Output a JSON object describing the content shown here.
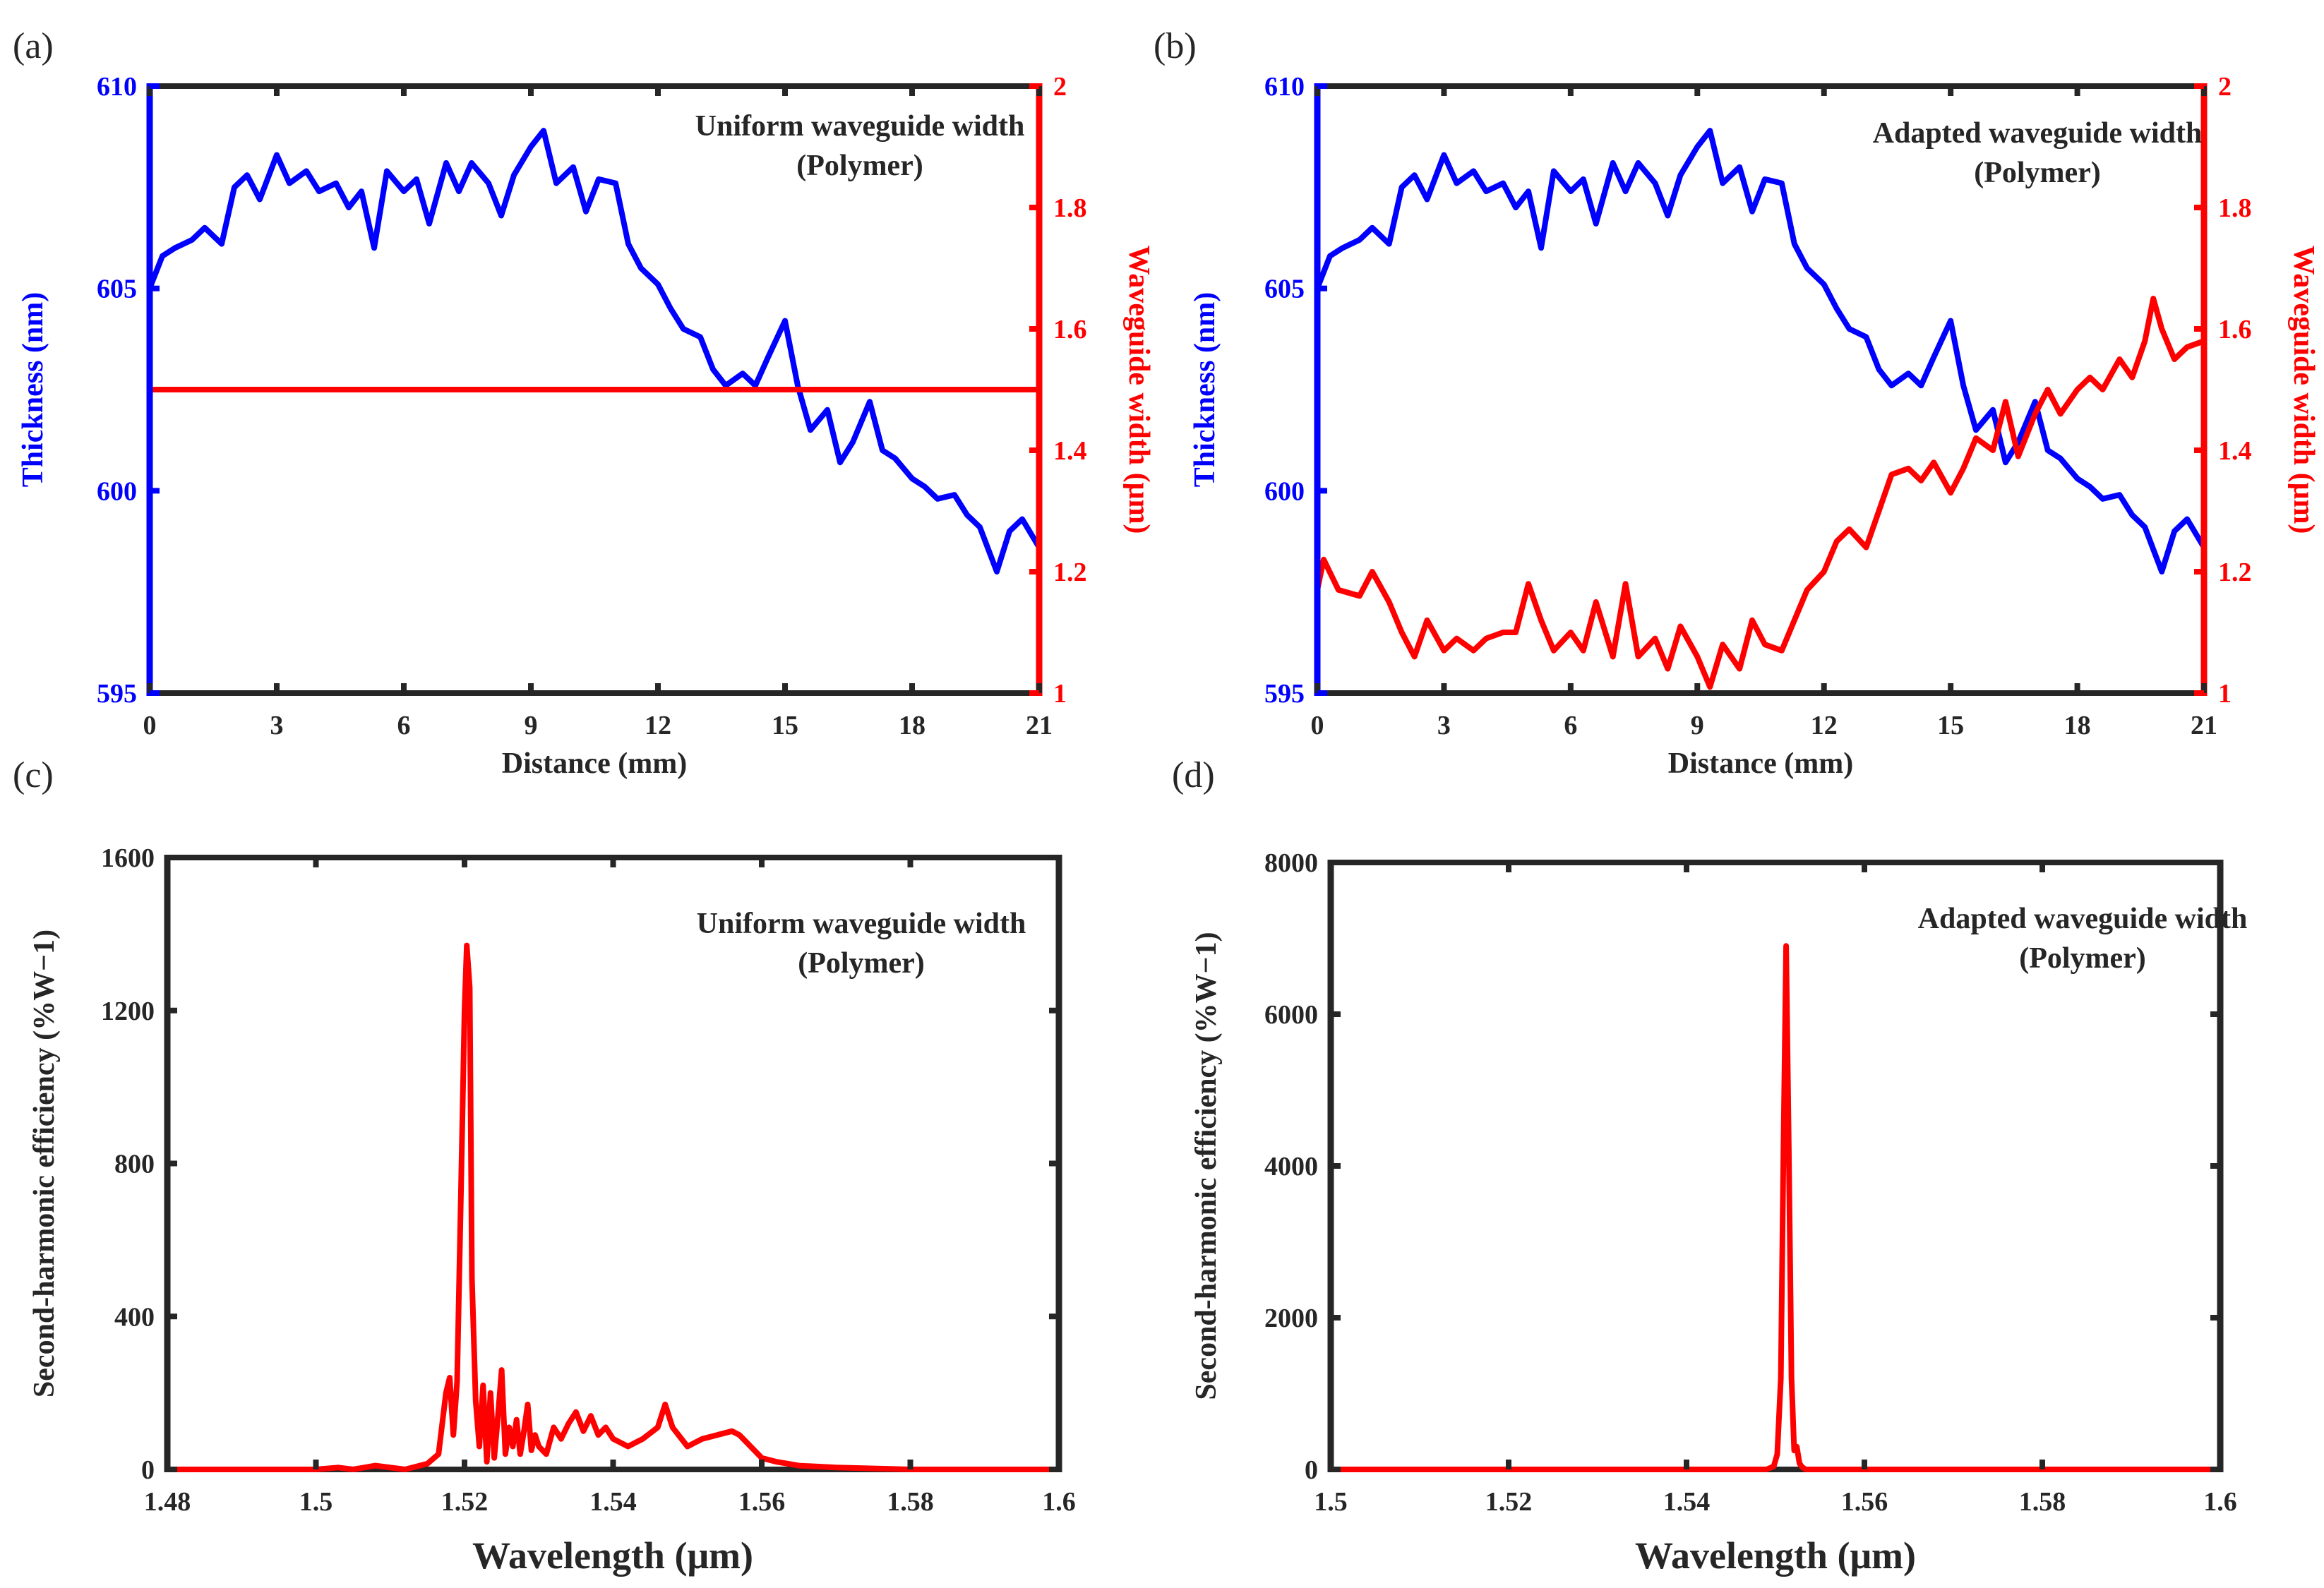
{
  "colors": {
    "blue": "#0000ff",
    "red": "#ff0000",
    "frame": "#262626",
    "text": "#262626"
  },
  "chart_data": [
    {
      "id": "a",
      "panel_label": "(a)",
      "type": "line",
      "annotation": [
        "Uniform waveguide width",
        "(Polymer)"
      ],
      "xlabel": "Distance (mm)",
      "xlim": [
        0,
        21
      ],
      "xticks": [
        0,
        3,
        6,
        9,
        12,
        15,
        18,
        21
      ],
      "xtick_labels": [
        "0",
        "3",
        "6",
        "9",
        "12",
        "15",
        "18",
        "21"
      ],
      "ylabel": "Thickness (nm)",
      "ylim": [
        595,
        610
      ],
      "yticks": [
        595,
        600,
        605,
        610
      ],
      "ytick_labels": [
        "595",
        "600",
        "605",
        "610"
      ],
      "y2label": "Waveguide width (μm)",
      "y2lim": [
        1,
        2
      ],
      "y2ticks": [
        1,
        1.2,
        1.4,
        1.6,
        1.8,
        2
      ],
      "y2tick_labels": [
        "1",
        "1.2",
        "1.4",
        "1.6",
        "1.8",
        "2"
      ],
      "series": [
        {
          "name": "Thickness",
          "axis": "left",
          "color": "#0000ff",
          "x": [
            0,
            0.3,
            0.6,
            1,
            1.3,
            1.7,
            2,
            2.3,
            2.6,
            3,
            3.3,
            3.7,
            4,
            4.4,
            4.7,
            5,
            5.3,
            5.6,
            6,
            6.3,
            6.6,
            7,
            7.3,
            7.6,
            8,
            8.3,
            8.6,
            9,
            9.3,
            9.6,
            10,
            10.3,
            10.6,
            11,
            11.3,
            11.6,
            12,
            12.3,
            12.6,
            13,
            13.3,
            13.6,
            14,
            14.3,
            14.6,
            15,
            15.3,
            15.6,
            16,
            16.3,
            16.6,
            17,
            17.3,
            17.6,
            18,
            18.3,
            18.6,
            19,
            19.3,
            19.6,
            20,
            20.3,
            20.6,
            21
          ],
          "values": [
            605,
            605.8,
            606,
            606.2,
            606.5,
            606.1,
            607.5,
            607.8,
            607.2,
            608.3,
            607.6,
            607.9,
            607.4,
            607.6,
            607,
            607.4,
            606,
            607.9,
            607.4,
            607.7,
            606.6,
            608.1,
            607.4,
            608.1,
            607.6,
            606.8,
            607.8,
            608.5,
            608.9,
            607.6,
            608,
            606.9,
            607.7,
            607.6,
            606.1,
            605.5,
            605.1,
            604.5,
            604,
            603.8,
            603,
            602.6,
            602.9,
            602.6,
            603.3,
            604.2,
            602.6,
            601.5,
            602,
            600.7,
            601.2,
            602.2,
            601,
            600.8,
            600.3,
            600.1,
            599.8,
            599.9,
            599.4,
            599.1,
            598,
            599,
            599.3,
            598.6
          ]
        },
        {
          "name": "Waveguide width",
          "axis": "right",
          "color": "#ff0000",
          "x": [
            0,
            21
          ],
          "values": [
            1.5,
            1.5
          ]
        }
      ]
    },
    {
      "id": "b",
      "panel_label": "(b)",
      "type": "line",
      "annotation": [
        "Adapted waveguide width",
        "(Polymer)"
      ],
      "xlabel": "Distance (mm)",
      "xlim": [
        0,
        21
      ],
      "xticks": [
        0,
        3,
        6,
        9,
        12,
        15,
        18,
        21
      ],
      "xtick_labels": [
        "0",
        "3",
        "6",
        "9",
        "12",
        "15",
        "18",
        "21"
      ],
      "ylabel": "Thickness (nm)",
      "ylim": [
        595,
        610
      ],
      "yticks": [
        595,
        600,
        605,
        610
      ],
      "ytick_labels": [
        "595",
        "600",
        "605",
        "610"
      ],
      "y2label": "Waveguide width (μm)",
      "y2lim": [
        1,
        2
      ],
      "y2ticks": [
        1,
        1.2,
        1.4,
        1.6,
        1.8,
        2
      ],
      "y2tick_labels": [
        "1",
        "1.2",
        "1.4",
        "1.6",
        "1.8",
        "2"
      ],
      "series": [
        {
          "name": "Thickness",
          "axis": "left",
          "color": "#0000ff",
          "x": [
            0,
            0.3,
            0.6,
            1,
            1.3,
            1.7,
            2,
            2.3,
            2.6,
            3,
            3.3,
            3.7,
            4,
            4.4,
            4.7,
            5,
            5.3,
            5.6,
            6,
            6.3,
            6.6,
            7,
            7.3,
            7.6,
            8,
            8.3,
            8.6,
            9,
            9.3,
            9.6,
            10,
            10.3,
            10.6,
            11,
            11.3,
            11.6,
            12,
            12.3,
            12.6,
            13,
            13.3,
            13.6,
            14,
            14.3,
            14.6,
            15,
            15.3,
            15.6,
            16,
            16.3,
            16.6,
            17,
            17.3,
            17.6,
            18,
            18.3,
            18.6,
            19,
            19.3,
            19.6,
            20,
            20.3,
            20.6,
            21
          ],
          "values": [
            605,
            605.8,
            606,
            606.2,
            606.5,
            606.1,
            607.5,
            607.8,
            607.2,
            608.3,
            607.6,
            607.9,
            607.4,
            607.6,
            607,
            607.4,
            606,
            607.9,
            607.4,
            607.7,
            606.6,
            608.1,
            607.4,
            608.1,
            607.6,
            606.8,
            607.8,
            608.5,
            608.9,
            607.6,
            608,
            606.9,
            607.7,
            607.6,
            606.1,
            605.5,
            605.1,
            604.5,
            604,
            603.8,
            603,
            602.6,
            602.9,
            602.6,
            603.3,
            604.2,
            602.6,
            601.5,
            602,
            600.7,
            601.2,
            602.2,
            601,
            600.8,
            600.3,
            600.1,
            599.8,
            599.9,
            599.4,
            599.1,
            598,
            599,
            599.3,
            598.6
          ]
        },
        {
          "name": "Waveguide width",
          "axis": "right",
          "color": "#ff0000",
          "x": [
            0,
            0.15,
            0.5,
            1,
            1.3,
            1.7,
            2,
            2.3,
            2.6,
            3,
            3.3,
            3.7,
            4,
            4.4,
            4.7,
            5,
            5.3,
            5.6,
            6,
            6.3,
            6.6,
            7,
            7.3,
            7.6,
            8,
            8.3,
            8.6,
            9,
            9.3,
            9.6,
            10,
            10.3,
            10.6,
            11,
            11.3,
            11.6,
            12,
            12.3,
            12.6,
            13,
            13.3,
            13.6,
            14,
            14.3,
            14.6,
            15,
            15.3,
            15.6,
            16,
            16.3,
            16.6,
            17,
            17.3,
            17.6,
            18,
            18.3,
            18.6,
            19,
            19.3,
            19.6,
            19.8,
            20,
            20.3,
            20.6,
            21
          ],
          "values": [
            1.17,
            1.22,
            1.17,
            1.16,
            1.2,
            1.15,
            1.1,
            1.06,
            1.12,
            1.07,
            1.09,
            1.07,
            1.09,
            1.1,
            1.1,
            1.18,
            1.12,
            1.07,
            1.1,
            1.07,
            1.15,
            1.06,
            1.18,
            1.06,
            1.09,
            1.04,
            1.11,
            1.06,
            1.01,
            1.08,
            1.04,
            1.12,
            1.08,
            1.07,
            1.12,
            1.17,
            1.2,
            1.25,
            1.27,
            1.24,
            1.3,
            1.36,
            1.37,
            1.35,
            1.38,
            1.33,
            1.37,
            1.42,
            1.4,
            1.48,
            1.39,
            1.46,
            1.5,
            1.46,
            1.5,
            1.52,
            1.5,
            1.55,
            1.52,
            1.58,
            1.65,
            1.6,
            1.55,
            1.57,
            1.58
          ]
        }
      ]
    },
    {
      "id": "c",
      "panel_label": "(c)",
      "type": "line",
      "annotation": [
        "Uniform waveguide width",
        "(Polymer)"
      ],
      "xlabel": "Wavelength (μm)",
      "xlim": [
        1.48,
        1.6
      ],
      "xticks": [
        1.48,
        1.5,
        1.52,
        1.54,
        1.56,
        1.58,
        1.6
      ],
      "xtick_labels": [
        "1.48",
        "1.5",
        "1.52",
        "1.54",
        "1.56",
        "1.58",
        "1.6"
      ],
      "ylabel": "Second-harmonic efficiency (%W−1)",
      "ylim": [
        0,
        1600
      ],
      "yticks": [
        0,
        400,
        800,
        1200,
        1600
      ],
      "ytick_labels": [
        "0",
        "400",
        "800",
        "1200",
        "1600"
      ],
      "series": [
        {
          "name": "SH efficiency",
          "axis": "left",
          "color": "#ff0000",
          "x": [
            1.48,
            1.5,
            1.503,
            1.505,
            1.508,
            1.512,
            1.515,
            1.5165,
            1.5175,
            1.518,
            1.5185,
            1.519,
            1.5195,
            1.52,
            1.5203,
            1.5207,
            1.521,
            1.5215,
            1.522,
            1.5225,
            1.523,
            1.5235,
            1.524,
            1.5245,
            1.525,
            1.5255,
            1.526,
            1.5265,
            1.527,
            1.5275,
            1.528,
            1.5285,
            1.529,
            1.5295,
            1.53,
            1.531,
            1.532,
            1.533,
            1.534,
            1.535,
            1.536,
            1.537,
            1.538,
            1.539,
            1.54,
            1.542,
            1.544,
            1.546,
            1.547,
            1.548,
            1.55,
            1.552,
            1.554,
            1.556,
            1.557,
            1.558,
            1.56,
            1.562,
            1.565,
            1.57,
            1.58,
            1.6
          ],
          "values": [
            0,
            0,
            5,
            0,
            10,
            0,
            15,
            40,
            200,
            240,
            90,
            230,
            700,
            1200,
            1370,
            1260,
            500,
            180,
            60,
            220,
            20,
            200,
            30,
            140,
            260,
            40,
            110,
            60,
            130,
            40,
            100,
            170,
            50,
            90,
            60,
            40,
            110,
            80,
            120,
            150,
            100,
            140,
            90,
            110,
            80,
            60,
            80,
            110,
            170,
            110,
            60,
            80,
            90,
            100,
            90,
            70,
            30,
            20,
            10,
            5,
            0,
            0
          ]
        }
      ]
    },
    {
      "id": "d",
      "panel_label": "(d)",
      "type": "line",
      "annotation": [
        "Adapted waveguide width",
        "(Polymer)"
      ],
      "xlabel": "Wavelength (μm)",
      "xlim": [
        1.5,
        1.6
      ],
      "xticks": [
        1.5,
        1.52,
        1.54,
        1.56,
        1.58,
        1.6
      ],
      "xtick_labels": [
        "1.5",
        "1.52",
        "1.54",
        "1.56",
        "1.58",
        "1.6"
      ],
      "ylabel": "Second-harmonic efficiency (%W−1)",
      "ylim": [
        0,
        8000
      ],
      "yticks": [
        0,
        2000,
        4000,
        6000,
        8000
      ],
      "ytick_labels": [
        "0",
        "2000",
        "4000",
        "6000",
        "8000"
      ],
      "series": [
        {
          "name": "SH efficiency",
          "axis": "left",
          "color": "#ff0000",
          "x": [
            1.5,
            1.549,
            1.5498,
            1.5502,
            1.5506,
            1.5509,
            1.5512,
            1.5515,
            1.5518,
            1.5521,
            1.5524,
            1.5527,
            1.553,
            1.5534,
            1.555,
            1.6
          ],
          "values": [
            0,
            0,
            40,
            200,
            1200,
            4200,
            6900,
            4200,
            1200,
            250,
            300,
            80,
            30,
            0,
            0,
            0
          ]
        }
      ]
    }
  ]
}
